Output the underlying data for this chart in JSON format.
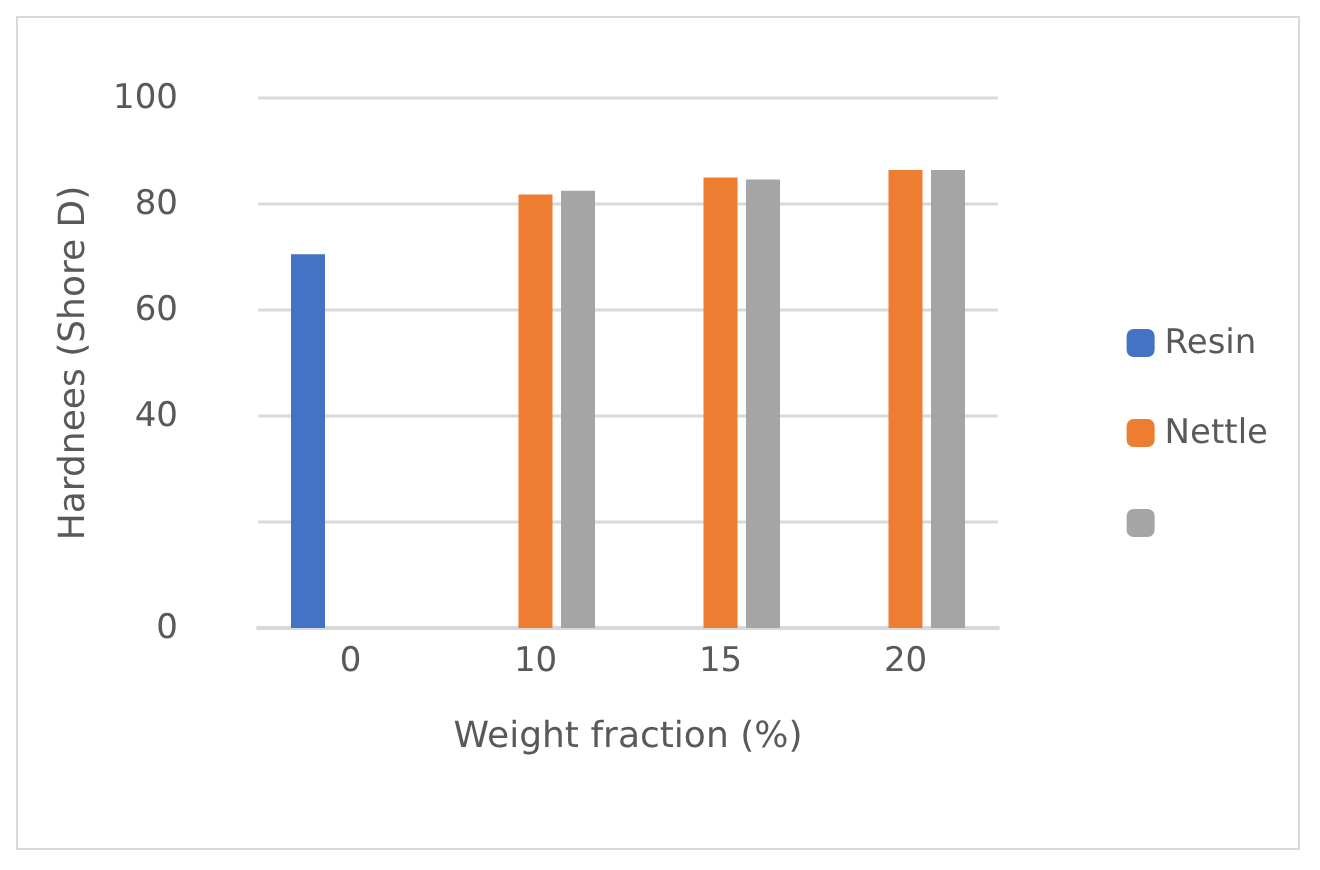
{
  "chart_data": {
    "type": "bar",
    "xlabel": "Weight fraction (%)",
    "ylabel": "Hardnees (Shore D)",
    "categories": [
      "0",
      "10",
      "15",
      "20"
    ],
    "series": [
      {
        "name": "Resin",
        "color": "#4472c4",
        "values": [
          70.5,
          null,
          null,
          null
        ]
      },
      {
        "name": "Nettle",
        "color": "#ed7d31",
        "values": [
          null,
          81.8,
          85,
          86.4
        ]
      },
      {
        "color": "#a5a5a5",
        "values": [
          null,
          82.5,
          84.6,
          86.4
        ]
      }
    ],
    "ylim": [
      0,
      100
    ],
    "yticks": [
      0,
      {
        "value": 20,
        "label": null
      },
      40,
      60,
      80,
      100
    ],
    "grid": "y",
    "legend": "right"
  }
}
